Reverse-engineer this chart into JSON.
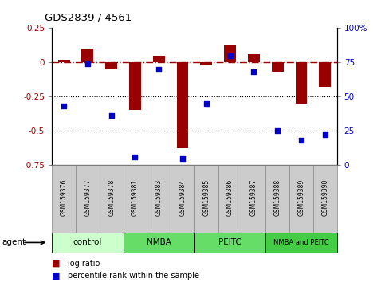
{
  "title": "GDS2839 / 4561",
  "samples": [
    "GSM159376",
    "GSM159377",
    "GSM159378",
    "GSM159381",
    "GSM159383",
    "GSM159384",
    "GSM159385",
    "GSM159386",
    "GSM159387",
    "GSM159388",
    "GSM159389",
    "GSM159390"
  ],
  "log_ratio": [
    0.02,
    0.1,
    -0.05,
    -0.35,
    0.05,
    -0.63,
    -0.02,
    0.13,
    0.06,
    -0.07,
    -0.3,
    -0.18
  ],
  "percentile_rank": [
    43,
    74,
    36,
    6,
    70,
    5,
    45,
    80,
    68,
    25,
    18,
    22
  ],
  "bar_color": "#990000",
  "dot_color": "#0000cc",
  "ylim_left": [
    -0.75,
    0.25
  ],
  "ylim_right": [
    0,
    100
  ],
  "yticks_left": [
    0.25,
    0.0,
    -0.25,
    -0.5,
    -0.75
  ],
  "yticks_right": [
    100,
    75,
    50,
    25,
    0
  ],
  "hline_y": 0.0,
  "dotted_lines": [
    -0.25,
    -0.5
  ],
  "groups": [
    {
      "label": "control",
      "start": 0,
      "end": 3,
      "color": "#ccffcc"
    },
    {
      "label": "NMBA",
      "start": 3,
      "end": 6,
      "color": "#66dd66"
    },
    {
      "label": "PEITC",
      "start": 6,
      "end": 9,
      "color": "#66dd66"
    },
    {
      "label": "NMBA and PEITC",
      "start": 9,
      "end": 12,
      "color": "#44cc44"
    }
  ],
  "legend_bar_label": "log ratio",
  "legend_dot_label": "percentile rank within the sample",
  "agent_label": "agent",
  "bar_width": 0.5,
  "sample_box_color": "#cccccc",
  "sample_box_edge": "#888888"
}
